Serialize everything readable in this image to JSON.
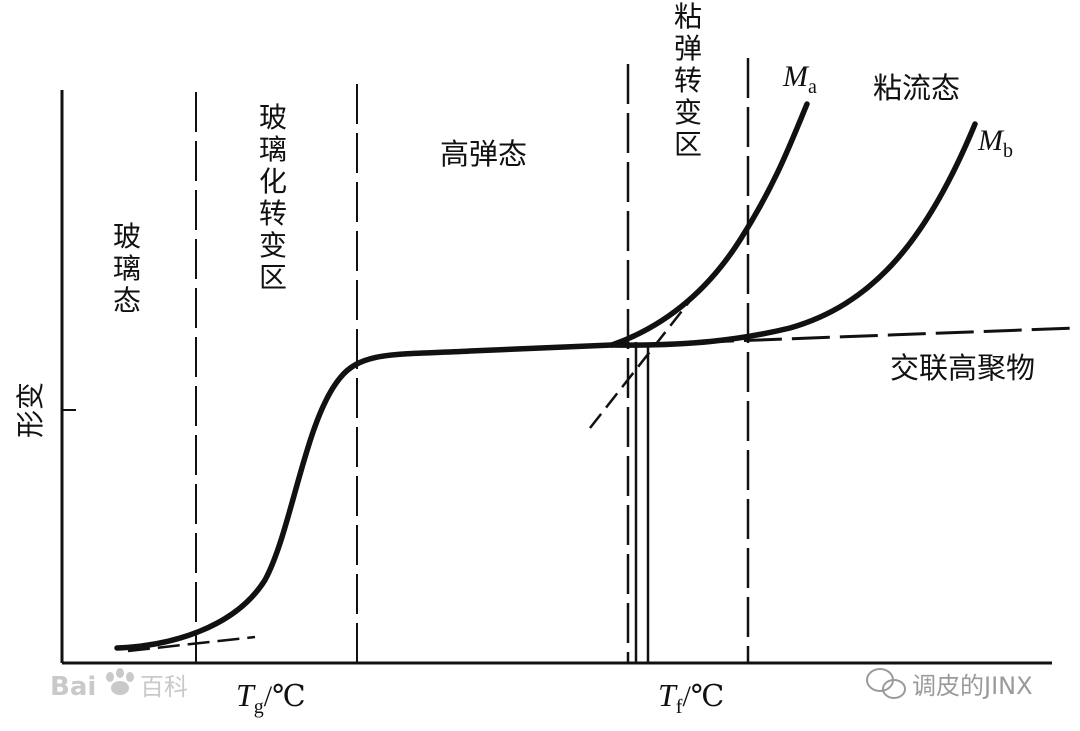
{
  "regions": {
    "glassy": "玻\n璃\n态",
    "glass_transition": "玻\n璃\n化\n转\n变\n区",
    "rubbery": "高弹态",
    "viscoelastic_transition": "粘\n弹\n转\n变\n区",
    "viscous_flow": "粘流态"
  },
  "y_axis_label": "形变",
  "curves": {
    "ma": {
      "base": "M",
      "sub": "a"
    },
    "mb": {
      "base": "M",
      "sub": "b"
    },
    "crosslinked": "交联高聚物"
  },
  "x_ticks": {
    "tg": {
      "base": "T",
      "sub": "g",
      "unit": "/℃"
    },
    "tf": {
      "base": "T",
      "sub": "f",
      "unit": "/℃"
    }
  },
  "watermarks": {
    "baidu_latin": "Bai",
    "baidu_cn": "百科",
    "wechat": "调皮的JINX"
  },
  "colors": {
    "ink": "#111111",
    "watermark": "#c9c9c9"
  }
}
